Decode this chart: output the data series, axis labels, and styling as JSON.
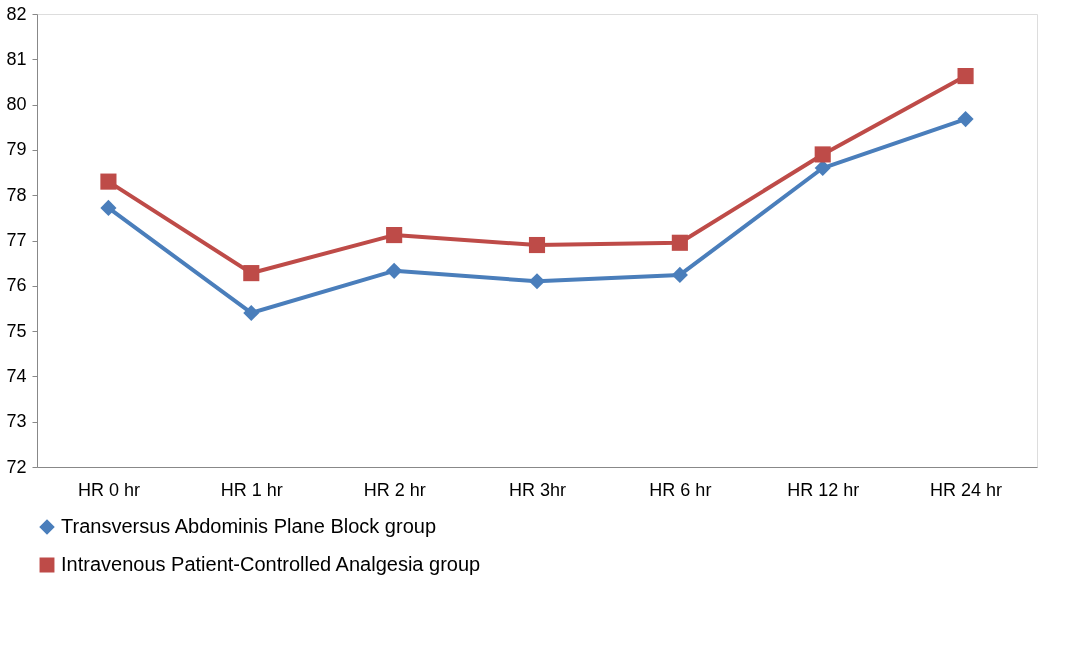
{
  "chart_data": {
    "type": "line",
    "categories": [
      "HR 0 hr",
      "HR 1 hr",
      "HR 2 hr",
      "HR 3hr",
      "HR 6 hr",
      "HR 12 hr",
      "HR 24 hr"
    ],
    "series": [
      {
        "name": "Transversus Abdominis Plane Block  group",
        "color": "#4a7ebb",
        "marker": "diamond",
        "values": [
          77.72,
          75.4,
          76.33,
          76.1,
          76.24,
          78.6,
          79.68
        ]
      },
      {
        "name": "Intravenous Patient-Controlled Analgesia group",
        "color": "#be4b48",
        "marker": "square",
        "values": [
          78.3,
          76.28,
          77.12,
          76.9,
          76.95,
          78.9,
          80.63
        ]
      }
    ],
    "ylim": [
      72,
      82
    ],
    "yticks": [
      72,
      73,
      74,
      75,
      76,
      77,
      78,
      79,
      80,
      81,
      82
    ],
    "grid": false,
    "legend": "bottom",
    "line_style": "solid"
  }
}
